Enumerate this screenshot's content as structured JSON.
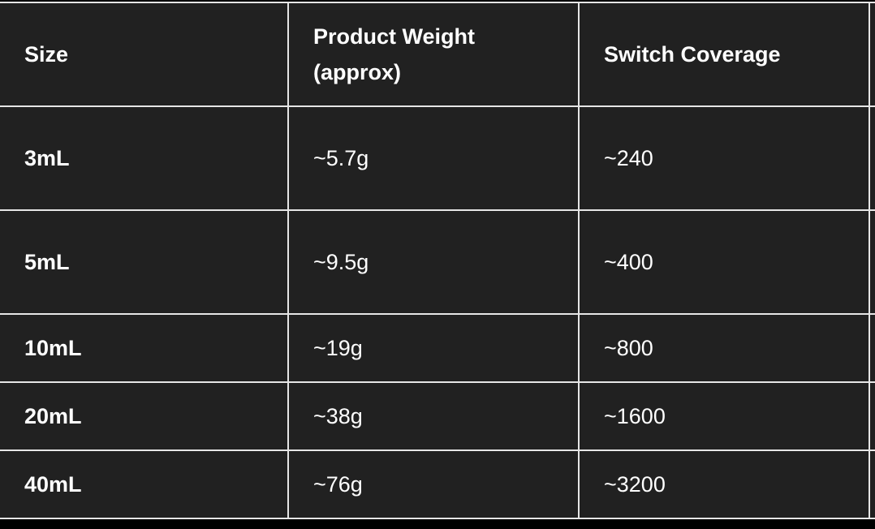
{
  "table": {
    "headers": [
      "Size",
      "Product Weight (approx)",
      "Switch Coverage"
    ],
    "rows": [
      {
        "size": "3mL",
        "weight": "~5.7g",
        "coverage": "~240"
      },
      {
        "size": "5mL",
        "weight": "~9.5g",
        "coverage": "~400"
      },
      {
        "size": "10mL",
        "weight": "~19g",
        "coverage": "~800"
      },
      {
        "size": "20mL",
        "weight": "~38g",
        "coverage": "~1600"
      },
      {
        "size": "40mL",
        "weight": "~76g",
        "coverage": "~3200"
      }
    ]
  }
}
